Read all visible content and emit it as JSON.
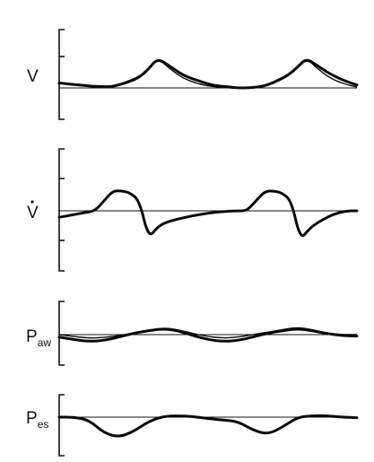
{
  "chart_data": [
    {
      "type": "line",
      "label": "V",
      "x": [
        0,
        0.03,
        0.07,
        0.1,
        0.13,
        0.17,
        0.2,
        0.23,
        0.27,
        0.3,
        0.33,
        0.37,
        0.4,
        0.43,
        0.47,
        0.5,
        0.53,
        0.57,
        0.6,
        0.63,
        0.67,
        0.7,
        0.73,
        0.77,
        0.8,
        0.83,
        0.87,
        0.9,
        0.93,
        0.97,
        1.0
      ],
      "series": [
        {
          "values": [
            0.1,
            0.08,
            0.06,
            0.04,
            0.03,
            0.02,
            0.06,
            0.12,
            0.22,
            0.38,
            0.6,
            0.45,
            0.32,
            0.22,
            0.14,
            0.08,
            0.04,
            0.02,
            0.0,
            0.0,
            0.02,
            0.06,
            0.14,
            0.26,
            0.42,
            0.6,
            0.44,
            0.32,
            0.22,
            0.12,
            0.06
          ]
        },
        {
          "values": [
            0.1,
            0.08,
            0.06,
            0.04,
            0.03,
            0.02,
            0.05,
            0.1,
            0.2,
            0.36,
            0.6,
            0.4,
            0.26,
            0.16,
            0.08,
            0.04,
            0.02,
            0.0,
            0.0,
            0.0,
            0.02,
            0.05,
            0.12,
            0.24,
            0.4,
            0.6,
            0.38,
            0.24,
            0.14,
            0.06,
            0.02
          ]
        }
      ]
    },
    {
      "type": "line",
      "label": "V̇",
      "x": [
        0,
        0.03,
        0.06,
        0.09,
        0.12,
        0.15,
        0.18,
        0.21,
        0.24,
        0.27,
        0.3,
        0.33,
        0.36,
        0.4,
        0.45,
        0.5,
        0.55,
        0.6,
        0.63,
        0.66,
        0.69,
        0.72,
        0.75,
        0.78,
        0.81,
        0.84,
        0.87,
        0.9,
        0.93,
        0.97,
        1.0
      ],
      "series": [
        {
          "values": [
            -0.2,
            -0.15,
            -0.1,
            -0.05,
            0.0,
            0.3,
            0.62,
            0.62,
            0.55,
            0.3,
            -0.85,
            -0.5,
            -0.35,
            -0.25,
            -0.15,
            -0.07,
            -0.02,
            0.0,
            0.0,
            0.3,
            0.6,
            0.62,
            0.55,
            0.3,
            -0.9,
            -0.55,
            -0.35,
            -0.2,
            -0.08,
            0.0,
            0.0
          ]
        }
      ]
    },
    {
      "type": "line",
      "label": "Paw",
      "x": [
        0,
        0.05,
        0.1,
        0.15,
        0.2,
        0.25,
        0.3,
        0.35,
        0.4,
        0.45,
        0.5,
        0.55,
        0.6,
        0.65,
        0.7,
        0.75,
        0.8,
        0.85,
        0.9,
        0.95,
        1.0
      ],
      "series": [
        {
          "values": [
            -0.05,
            -0.1,
            -0.14,
            -0.12,
            -0.05,
            0.03,
            0.08,
            0.12,
            0.08,
            -0.02,
            -0.1,
            -0.14,
            -0.12,
            -0.05,
            0.03,
            0.08,
            0.12,
            0.08,
            0.02,
            -0.02,
            -0.03
          ]
        },
        {
          "values": [
            0.0,
            -0.04,
            -0.07,
            -0.06,
            -0.02,
            0.03,
            0.08,
            0.14,
            0.1,
            0.02,
            -0.04,
            -0.07,
            -0.05,
            0.0,
            0.05,
            0.1,
            0.15,
            0.1,
            0.03,
            0.0,
            0.0
          ]
        }
      ]
    },
    {
      "type": "line",
      "label": "Pes",
      "x": [
        0,
        0.05,
        0.1,
        0.15,
        0.2,
        0.25,
        0.3,
        0.35,
        0.4,
        0.45,
        0.5,
        0.55,
        0.6,
        0.65,
        0.7,
        0.75,
        0.8,
        0.85,
        0.9,
        0.95,
        1.0
      ],
      "series": [
        {
          "values": [
            0.0,
            0.0,
            -0.1,
            -0.55,
            -0.7,
            -0.5,
            -0.15,
            0.03,
            0.05,
            0.02,
            -0.05,
            -0.1,
            -0.15,
            -0.45,
            -0.6,
            -0.35,
            0.0,
            0.05,
            0.05,
            0.0,
            -0.02
          ]
        }
      ]
    }
  ]
}
